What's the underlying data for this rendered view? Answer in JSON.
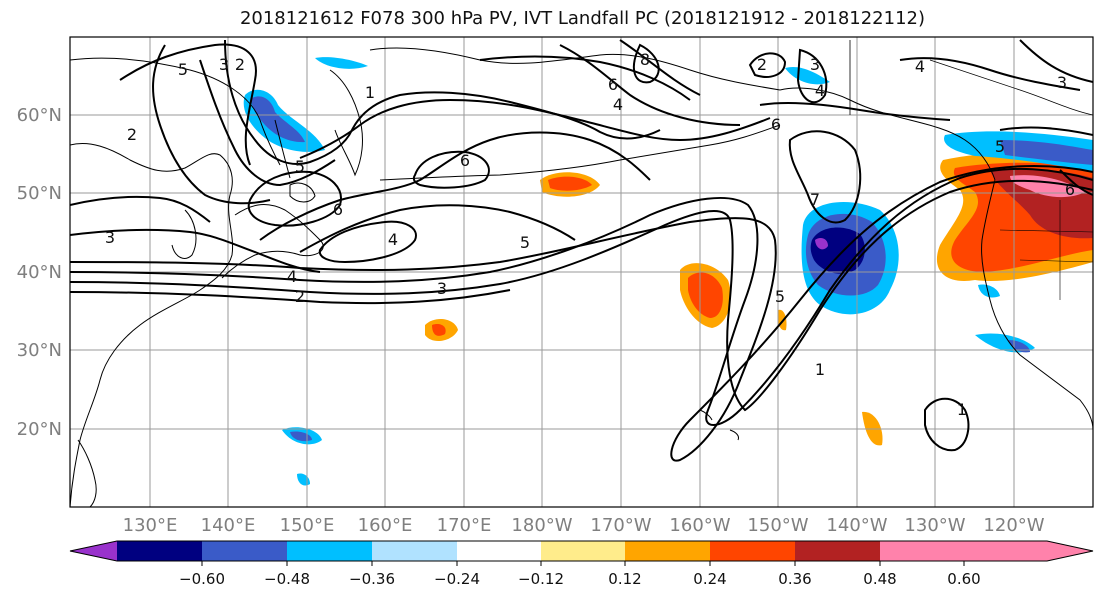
{
  "title": "2018121612 F078 300 hPa PV, IVT Landfall PC (2018121912 - 2018122112)",
  "colors": {
    "frame": "#000000",
    "grid": "#9a9a9a",
    "coast": "#000000",
    "contour": "#000000"
  },
  "lat_labels": [
    "60°N",
    "50°N",
    "40°N",
    "30°N",
    "20°N"
  ],
  "lon_labels": [
    "130°E",
    "140°E",
    "150°E",
    "160°E",
    "170°E",
    "180°W",
    "170°W",
    "160°W",
    "150°W",
    "140°W",
    "130°W",
    "120°W"
  ],
  "colorbar": {
    "colors": [
      "#9932cc",
      "#000080",
      "#3a5bc8",
      "#00bfff",
      "#b0e2ff",
      "#ffffff",
      "#ffec8b",
      "#ffa500",
      "#ff4500",
      "#b22222",
      "#ff82ab"
    ],
    "ticks": [
      "−0.60",
      "−0.48",
      "−0.36",
      "−0.24",
      "−0.12",
      "0.12",
      "0.24",
      "0.36",
      "0.48",
      "0.60"
    ]
  },
  "contour_labels": [
    "5",
    "3",
    "2",
    "1",
    "2",
    "5",
    "6",
    "6",
    "4",
    "3",
    "4",
    "2",
    "3",
    "5",
    "6",
    "4",
    "8",
    "2",
    "3",
    "4",
    "6",
    "7",
    "5",
    "4",
    "3",
    "6",
    "1",
    "1",
    "5"
  ]
}
